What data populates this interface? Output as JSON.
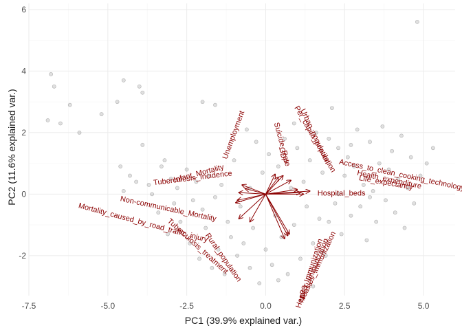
{
  "chart_data": {
    "type": "scatter",
    "xlabel": "PC1 (39.9% explained var.)",
    "ylabel": "PC2 (11.6% explained var.)",
    "xlim": [
      -7.5,
      6.0
    ],
    "ylim": [
      -3.3,
      6.2
    ],
    "x_ticks": [
      "-7.5",
      "-5.0",
      "-2.5",
      "0.0",
      "2.5",
      "5.0"
    ],
    "y_ticks": [
      "-2",
      "0",
      "2",
      "4",
      "6"
    ],
    "x_tick_values": [
      -7.5,
      -5.0,
      -2.5,
      0.0,
      2.5,
      5.0
    ],
    "y_tick_values": [
      -2,
      0,
      2,
      4,
      6
    ],
    "grid": true,
    "colors": {
      "points": "#999999",
      "vectors": "#8b0000",
      "grid": "#ebebeb"
    },
    "points": [
      [
        -6.9,
        2.4
      ],
      [
        -6.8,
        3.9
      ],
      [
        -6.7,
        3.5
      ],
      [
        -6.5,
        2.3
      ],
      [
        -6.2,
        2.9
      ],
      [
        -5.9,
        2.0
      ],
      [
        -5.2,
        2.6
      ],
      [
        -4.7,
        3.0
      ],
      [
        -4.5,
        3.7
      ],
      [
        -4.0,
        3.5
      ],
      [
        -3.9,
        3.3
      ],
      [
        -2.0,
        3.0
      ],
      [
        -1.6,
        2.9
      ],
      [
        -4.6,
        0.9
      ],
      [
        -4.5,
        0.1
      ],
      [
        -4.3,
        0.6
      ],
      [
        -4.1,
        0.4
      ],
      [
        -3.9,
        1.6
      ],
      [
        -3.7,
        0.3
      ],
      [
        -3.6,
        0.0
      ],
      [
        -3.4,
        -0.6
      ],
      [
        -3.3,
        0.9
      ],
      [
        -3.1,
        -1.3
      ],
      [
        -3.0,
        0.5
      ],
      [
        -2.8,
        0.2
      ],
      [
        -2.7,
        -0.9
      ],
      [
        -2.5,
        0.8
      ],
      [
        -2.4,
        -1.6
      ],
      [
        -2.3,
        -0.2
      ],
      [
        -2.2,
        0.4
      ],
      [
        -2.1,
        -2.1
      ],
      [
        -2.0,
        -0.5
      ],
      [
        -1.9,
        -1.1
      ],
      [
        -1.8,
        0.6
      ],
      [
        -1.7,
        -2.4
      ],
      [
        -1.6,
        -0.1
      ],
      [
        -1.5,
        -1.8
      ],
      [
        -1.4,
        0.3
      ],
      [
        -1.3,
        -2.6
      ],
      [
        -1.2,
        -0.9
      ],
      [
        -1.1,
        -1.4
      ],
      [
        -1.0,
        1.1
      ],
      [
        -0.9,
        -2.0
      ],
      [
        -0.8,
        -0.4
      ],
      [
        -0.7,
        -1.6
      ],
      [
        -0.6,
        2.1
      ],
      [
        -0.5,
        -2.4
      ],
      [
        -0.4,
        -1.1
      ],
      [
        -0.3,
        1.7
      ],
      [
        -0.2,
        -2.9
      ],
      [
        -0.1,
        0.7
      ],
      [
        0.0,
        -1.8
      ],
      [
        0.1,
        1.3
      ],
      [
        0.2,
        -2.3
      ],
      [
        0.3,
        -0.7
      ],
      [
        0.4,
        0.9
      ],
      [
        0.5,
        -1.4
      ],
      [
        0.6,
        1.8
      ],
      [
        0.7,
        -2.6
      ],
      [
        0.8,
        0.2
      ],
      [
        0.9,
        -1.0
      ],
      [
        1.0,
        1.5
      ],
      [
        1.1,
        -2.1
      ],
      [
        1.2,
        0.4
      ],
      [
        1.3,
        -0.4
      ],
      [
        1.4,
        1.1
      ],
      [
        1.5,
        -1.6
      ],
      [
        1.6,
        2.0
      ],
      [
        1.7,
        -0.8
      ],
      [
        1.8,
        0.7
      ],
      [
        1.9,
        -2.0
      ],
      [
        2.0,
        1.8
      ],
      [
        2.1,
        2.8
      ],
      [
        2.2,
        -0.3
      ],
      [
        2.3,
        1.5
      ],
      [
        2.4,
        -1.3
      ],
      [
        2.5,
        0.6
      ],
      [
        2.6,
        1.2
      ],
      [
        2.7,
        -0.7
      ],
      [
        2.8,
        0.9
      ],
      [
        2.9,
        2.1
      ],
      [
        3.0,
        -0.4
      ],
      [
        3.1,
        0.3
      ],
      [
        3.2,
        -1.5
      ],
      [
        3.3,
        1.7
      ],
      [
        3.4,
        0.1
      ],
      [
        3.5,
        -0.9
      ],
      [
        3.6,
        1.0
      ],
      [
        3.7,
        2.2
      ],
      [
        3.8,
        -0.2
      ],
      [
        3.9,
        0.8
      ],
      [
        4.0,
        1.4
      ],
      [
        4.1,
        -0.6
      ],
      [
        4.2,
        0.5
      ],
      [
        4.3,
        1.9
      ],
      [
        4.4,
        -1.1
      ],
      [
        4.5,
        0.2
      ],
      [
        4.6,
        1.2
      ],
      [
        4.7,
        -0.3
      ],
      [
        4.9,
        0.6
      ],
      [
        5.1,
        1.0
      ],
      [
        5.3,
        1.5
      ],
      [
        4.8,
        5.6
      ],
      [
        -3.2,
        1.1
      ],
      [
        -2.9,
        -0.3
      ],
      [
        1.5,
        -3.0
      ],
      [
        0.4,
        -2.8
      ],
      [
        2.3,
        0.0
      ],
      [
        3.3,
        -0.1
      ],
      [
        2.7,
        1.6
      ],
      [
        1.8,
        -1.9
      ],
      [
        -0.5,
        0.2
      ],
      [
        0.9,
        2.3
      ],
      [
        2.0,
        -0.9
      ]
    ],
    "loadings": [
      {
        "name": "Unemployment",
        "x": -0.75,
        "y": 0.3
      },
      {
        "name": "Suicide_Rate",
        "x": 0.3,
        "y": 0.65
      },
      {
        "name": "GDP",
        "x": 0.4,
        "y": 0.55
      },
      {
        "name": "Urban_population",
        "x": 0.55,
        "y": 0.6
      },
      {
        "name": "Per_capita_population",
        "x": 0.8,
        "y": 0.45
      },
      {
        "name": "Hospital_beds",
        "x": 1.0,
        "y": 0.15
      },
      {
        "name": "Life_expectancy",
        "x": 1.1,
        "y": 0.05
      },
      {
        "name": "Health_expenditure",
        "x": 1.2,
        "y": 0.0
      },
      {
        "name": "Access_to_clean_cooking_technology",
        "x": 1.4,
        "y": 0.1
      },
      {
        "name": "Infant_Mortality",
        "x": -0.65,
        "y": 0.18
      },
      {
        "name": "Tuberculosis_Incidence",
        "x": -0.85,
        "y": 0.05
      },
      {
        "name": "Non-communicable_Mortality",
        "x": -0.9,
        "y": -0.2
      },
      {
        "name": "Mortality_caused_by_road_traffic_injury",
        "x": -0.95,
        "y": -0.28
      },
      {
        "name": "Tuberculosis_treatment",
        "x": -0.85,
        "y": -0.8
      },
      {
        "name": "Rural_population",
        "x": -0.5,
        "y": -0.9
      },
      {
        "name": "Measles_Immunization",
        "x": 0.75,
        "y": -1.3
      },
      {
        "name": "DPT_Immunization",
        "x": 0.7,
        "y": -1.35
      },
      {
        "name": "HepB3_Immunization",
        "x": 0.6,
        "y": -1.45
      }
    ],
    "vector_labels": [
      {
        "text": "Unemployment",
        "x": -0.95,
        "y": 1.9,
        "rotate": 70,
        "anchor": "middle"
      },
      {
        "text": "Suicide_Rate",
        "x": 0.45,
        "y": 1.6,
        "rotate": -75,
        "anchor": "middle"
      },
      {
        "text": "GDP",
        "x": 0.48,
        "y": 1.25,
        "rotate": -80,
        "anchor": "middle"
      },
      {
        "text": "Urban_population",
        "x": 1.5,
        "y": 1.85,
        "rotate": -65,
        "anchor": "middle"
      },
      {
        "text": "Per_capita_population",
        "x": 1.5,
        "y": 1.75,
        "rotate": -60,
        "anchor": "middle"
      },
      {
        "text": "Hospital_beds",
        "x": 2.4,
        "y": -0.05,
        "rotate": 0,
        "anchor": "middle"
      },
      {
        "text": "Life_expectancy",
        "x": 3.8,
        "y": 0.3,
        "rotate": -10,
        "anchor": "middle"
      },
      {
        "text": "Health_expenditure",
        "x": 3.9,
        "y": 0.4,
        "rotate": -12,
        "anchor": "middle"
      },
      {
        "text": "Access_to_clean_cooking_technology",
        "x": 4.3,
        "y": 0.55,
        "rotate": -12,
        "anchor": "middle"
      },
      {
        "text": "Infant_Mortality",
        "x": -2.1,
        "y": 0.6,
        "rotate": 15,
        "anchor": "middle"
      },
      {
        "text": "Tuberculosis_Incidence",
        "x": -2.3,
        "y": 0.45,
        "rotate": 7,
        "anchor": "middle"
      },
      {
        "text": "Non-communicable_Mortality",
        "x": -3.1,
        "y": -0.55,
        "rotate": -12,
        "anchor": "middle"
      },
      {
        "text": "Mortality_caused_by_road_traffic_injury",
        "x": -3.9,
        "y": -1.0,
        "rotate": -15,
        "anchor": "middle"
      },
      {
        "text": "Tuberculosis_treatment",
        "x": -2.2,
        "y": -1.75,
        "rotate": -42,
        "anchor": "middle"
      },
      {
        "text": "Rural_population",
        "x": -1.4,
        "y": -2.1,
        "rotate": -55,
        "anchor": "middle"
      },
      {
        "text": "Measles_Immunization",
        "x": 1.7,
        "y": -2.4,
        "rotate": 65,
        "anchor": "middle"
      },
      {
        "text": "DPT_Immunization",
        "x": 1.6,
        "y": -2.45,
        "rotate": 68,
        "anchor": "middle"
      },
      {
        "text": "HepB3_Immunization",
        "x": 1.45,
        "y": -2.6,
        "rotate": 72,
        "anchor": "middle"
      }
    ]
  }
}
